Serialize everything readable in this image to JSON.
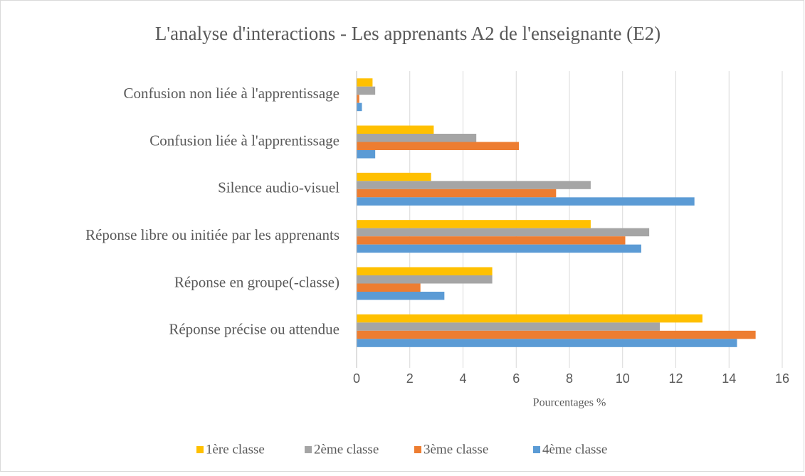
{
  "chart_data": {
    "type": "bar",
    "orientation": "horizontal",
    "title": "L'analyse d'interactions - Les apprenants A2 de l'enseignante (E2)",
    "xlabel": "Pourcentages %",
    "categories": [
      "Confusion non liée à l'apprentissage",
      "Confusion liée à l'apprentissage",
      "Silence audio-visuel",
      "Réponse libre ou initiée par les apprenants",
      "Réponse en groupe(-classe)",
      "Réponse précise ou attendue"
    ],
    "series": [
      {
        "name": "1ère classe",
        "color": "#ffc000",
        "values": [
          0.6,
          2.9,
          2.8,
          8.8,
          5.1,
          13.0
        ]
      },
      {
        "name": "2ème classe",
        "color": "#a5a5a5",
        "values": [
          0.7,
          4.5,
          8.8,
          11.0,
          5.1,
          11.4
        ]
      },
      {
        "name": "3ème classe",
        "color": "#ed7d31",
        "values": [
          0.1,
          6.1,
          7.5,
          10.1,
          2.4,
          15.0
        ]
      },
      {
        "name": "4ème classe",
        "color": "#5b9bd5",
        "values": [
          0.2,
          0.7,
          12.7,
          10.7,
          3.3,
          14.3
        ]
      }
    ],
    "xlim": [
      0,
      16
    ],
    "xticks": [
      0,
      2,
      4,
      6,
      8,
      10,
      12,
      14,
      16
    ],
    "grid": true,
    "legend": "bottom"
  }
}
